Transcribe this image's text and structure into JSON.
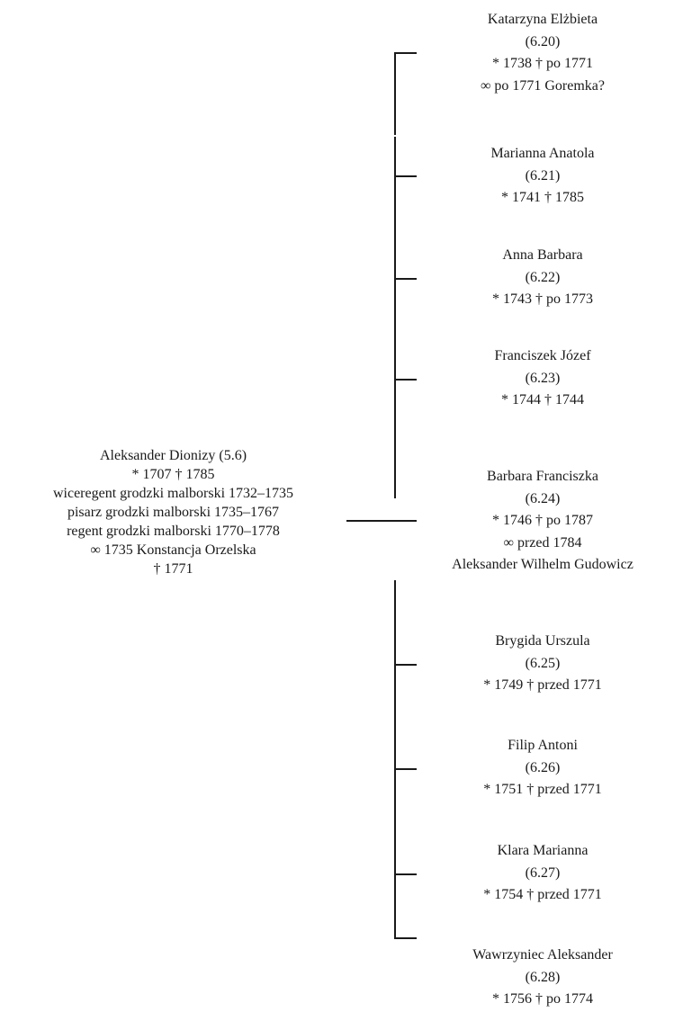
{
  "parent": {
    "lines": [
      "Aleksander Dionizy (5.6)",
      "* 1707 † 1785",
      "wiceregent grodzki malborski 1732–1735",
      "pisarz grodzki malborski 1735–1767",
      "regent grodzki malborski 1770–1778",
      "∞ 1735 Konstancja Orzelska",
      "† 1771"
    ]
  },
  "children": [
    {
      "name": "Katarzyna Elżbieta",
      "id": "(6.20)",
      "dates": "* 1738 † po 1771",
      "extra": [
        "∞ po 1771 Goremka?"
      ]
    },
    {
      "name": "Marianna Anatola",
      "id": "(6.21)",
      "dates": "* 1741 † 1785",
      "extra": []
    },
    {
      "name": "Anna Barbara",
      "id": "(6.22)",
      "dates": "* 1743 † po 1773",
      "extra": []
    },
    {
      "name": "Franciszek Józef",
      "id": "(6.23)",
      "dates": "* 1744 † 1744",
      "extra": []
    },
    {
      "name": "Barbara Franciszka",
      "id": "(6.24)",
      "dates": "* 1746 † po 1787",
      "extra": [
        "∞ przed 1784",
        "Aleksander Wilhelm Gudowicz"
      ]
    },
    {
      "name": "Brygida Urszula",
      "id": "(6.25)",
      "dates": "* 1749 † przed 1771",
      "extra": []
    },
    {
      "name": "Filip Antoni",
      "id": "(6.26)",
      "dates": "* 1751 † przed 1771",
      "extra": []
    },
    {
      "name": "Klara Marianna",
      "id": "(6.27)",
      "dates": "* 1754 † przed 1771",
      "extra": []
    },
    {
      "name": "Wawrzyniec Aleksander",
      "id": "(6.28)",
      "dates": "* 1756 † po 1774",
      "extra": []
    }
  ]
}
